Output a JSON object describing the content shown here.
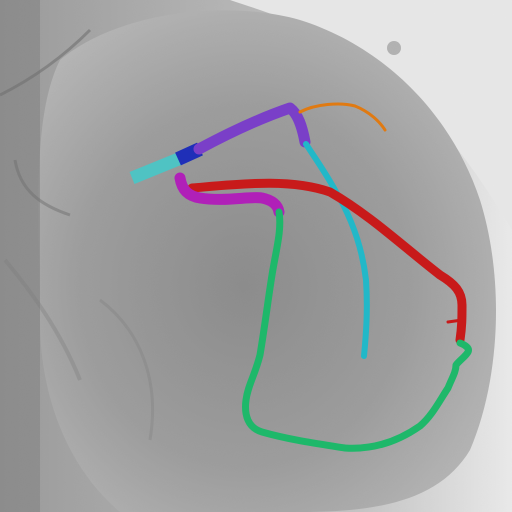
{
  "image": {
    "kind": "coronary angiogram with color-coded vessel segmentation overlay",
    "background_colors": {
      "film": "#a9a9a9",
      "light_field": "#f2f2f2",
      "shadow": "#6f6f6f"
    }
  },
  "segments": [
    {
      "name": "vessel-segment-teal-catheter",
      "color": "#4fc3c3"
    },
    {
      "name": "vessel-segment-blue-ostium",
      "color": "#1f2fb8"
    },
    {
      "name": "vessel-segment-purple-left-main",
      "color": "#7a3fc8"
    },
    {
      "name": "vessel-segment-orange-branch",
      "color": "#e07a12"
    },
    {
      "name": "vessel-segment-cyan-branch",
      "color": "#22b8c8"
    },
    {
      "name": "vessel-segment-red-artery",
      "color": "#c81a1a"
    },
    {
      "name": "vessel-segment-magenta-proximal",
      "color": "#b020b8"
    },
    {
      "name": "vessel-segment-green-circumflex",
      "color": "#1eb86a"
    }
  ]
}
